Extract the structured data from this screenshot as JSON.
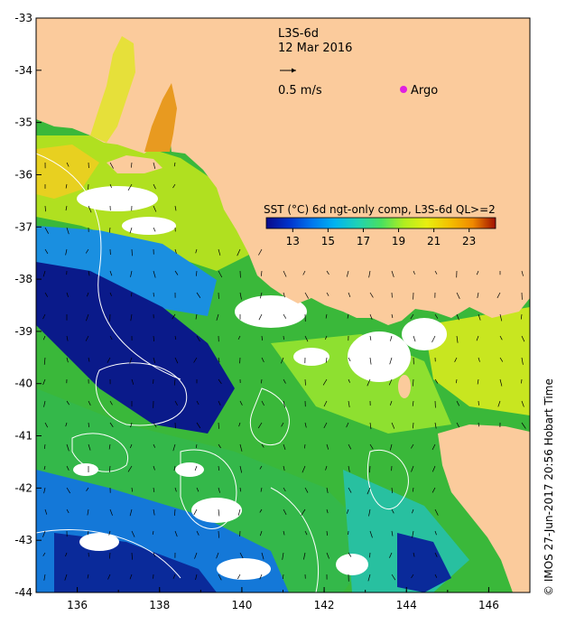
{
  "product": "L3S-6d",
  "date": "12 Mar 2016",
  "vector_scale_label": "0.5 m/s",
  "argo_label": "Argo",
  "colorbar": {
    "title": "SST (°C) 6d ngt-only comp, L3S-6d QL>=2",
    "tick_labels": [
      "13",
      "15",
      "17",
      "19",
      "21",
      "23"
    ],
    "range": [
      11.5,
      24.5
    ],
    "colors": [
      "#0a0a8a",
      "#0033cc",
      "#0077ee",
      "#00b4f0",
      "#20d2b4",
      "#48e060",
      "#7be83a",
      "#b0ee20",
      "#e8ee10",
      "#f4c000",
      "#f08a00",
      "#d84a00",
      "#a01000"
    ]
  },
  "credit": "© IMOS 27-Jun-2017 20:56 Hobart Time",
  "colors": {
    "land": "#fbcb9c",
    "cloud": "#ffffff",
    "frame": "#000000"
  },
  "chart_data": {
    "type": "heatmap",
    "xlim": [
      135,
      147
    ],
    "ylim": [
      -44,
      -33
    ],
    "x_ticks": [
      "136",
      "138",
      "140",
      "142",
      "144",
      "146"
    ],
    "y_ticks": [
      "-33",
      "-34",
      "-35",
      "-36",
      "-37",
      "-38",
      "-39",
      "-40",
      "-41",
      "-42",
      "-43",
      "-44"
    ]
  }
}
